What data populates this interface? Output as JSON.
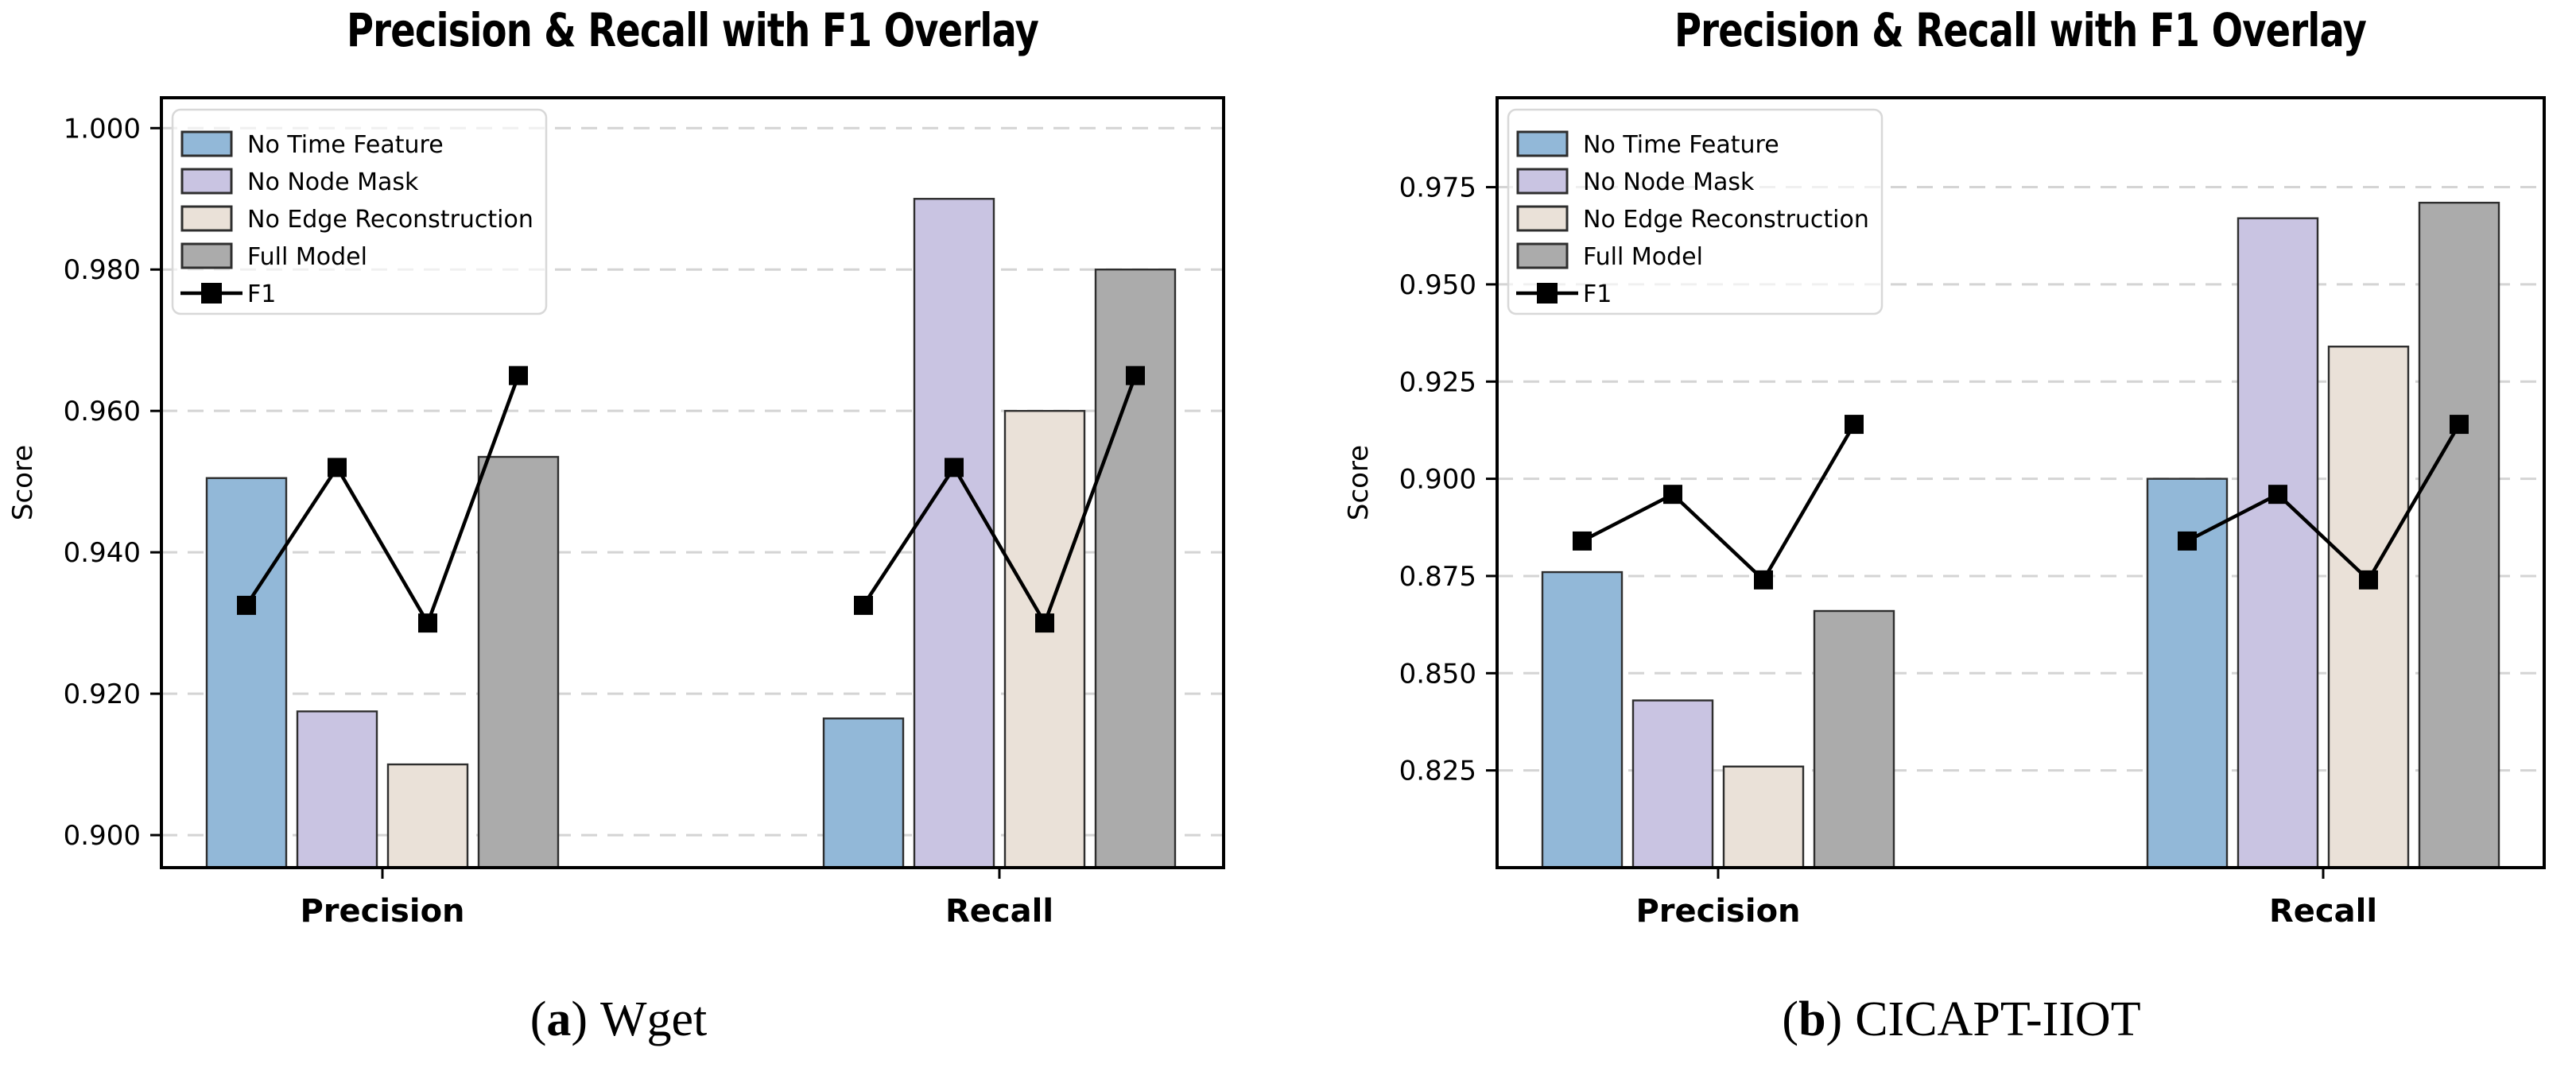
{
  "figure": {
    "background": "#ffffff"
  },
  "chart_data": [
    {
      "id": "a",
      "type": "bar",
      "title": "Precision & Recall with F1 Overlay",
      "ylabel": "Score",
      "categories": [
        "Precision",
        "Recall"
      ],
      "series": [
        {
          "name": "No Time Feature",
          "color": "#92b8d8",
          "values": [
            0.9505,
            0.9165
          ]
        },
        {
          "name": "No Node Mask",
          "color": "#c9c4e2",
          "values": [
            0.9175,
            0.99
          ]
        },
        {
          "name": "No Edge Reconstruction",
          "color": "#eae1d8",
          "values": [
            0.91,
            0.96
          ]
        },
        {
          "name": "Full Model",
          "color": "#ababab",
          "values": [
            0.9535,
            0.98
          ]
        }
      ],
      "line_overlay": {
        "name": "F1",
        "color": "#000000",
        "values": [
          [
            0.9325,
            0.952,
            0.93,
            0.965
          ],
          [
            0.9325,
            0.952,
            0.93,
            0.965
          ]
        ]
      },
      "bar_edge_color": "#2e2e2e",
      "grid_color": "#d4d4d4",
      "grid": "horizontal-dashed",
      "legend_loc": "upper left",
      "yticks": [
        "0.900",
        "0.920",
        "0.940",
        "0.960",
        "0.980",
        "1.000"
      ],
      "ytick_values": [
        0.9,
        0.92,
        0.94,
        0.96,
        0.98,
        1.0
      ],
      "ylim": [
        0.8954,
        1.0043
      ],
      "caption": {
        "open": "(",
        "letter": "a",
        "close": ")",
        "label": "Wget"
      }
    },
    {
      "id": "b",
      "type": "bar",
      "title": "Precision & Recall with F1 Overlay",
      "ylabel": "Score",
      "categories": [
        "Precision",
        "Recall"
      ],
      "series": [
        {
          "name": "No Time Feature",
          "color": "#92b8d8",
          "values": [
            0.876,
            0.9
          ]
        },
        {
          "name": "No Node Mask",
          "color": "#c9c4e2",
          "values": [
            0.843,
            0.967
          ]
        },
        {
          "name": "No Edge Reconstruction",
          "color": "#eae1d8",
          "values": [
            0.826,
            0.934
          ]
        },
        {
          "name": "Full Model",
          "color": "#ababab",
          "values": [
            0.866,
            0.971
          ]
        }
      ],
      "line_overlay": {
        "name": "F1",
        "color": "#000000",
        "values": [
          [
            0.884,
            0.896,
            0.874,
            0.914
          ],
          [
            0.884,
            0.896,
            0.874,
            0.914
          ]
        ]
      },
      "bar_edge_color": "#2e2e2e",
      "grid_color": "#d4d4d4",
      "grid": "horizontal-dashed",
      "legend_loc": "upper left",
      "yticks": [
        "0.825",
        "0.850",
        "0.875",
        "0.900",
        "0.925",
        "0.950",
        "0.975"
      ],
      "ytick_values": [
        0.825,
        0.85,
        0.875,
        0.9,
        0.925,
        0.95,
        0.975
      ],
      "ylim": [
        0.8,
        0.998
      ],
      "caption": {
        "open": "(",
        "letter": "b",
        "close": ")",
        "label": "CICAPT-IIOT"
      }
    }
  ]
}
